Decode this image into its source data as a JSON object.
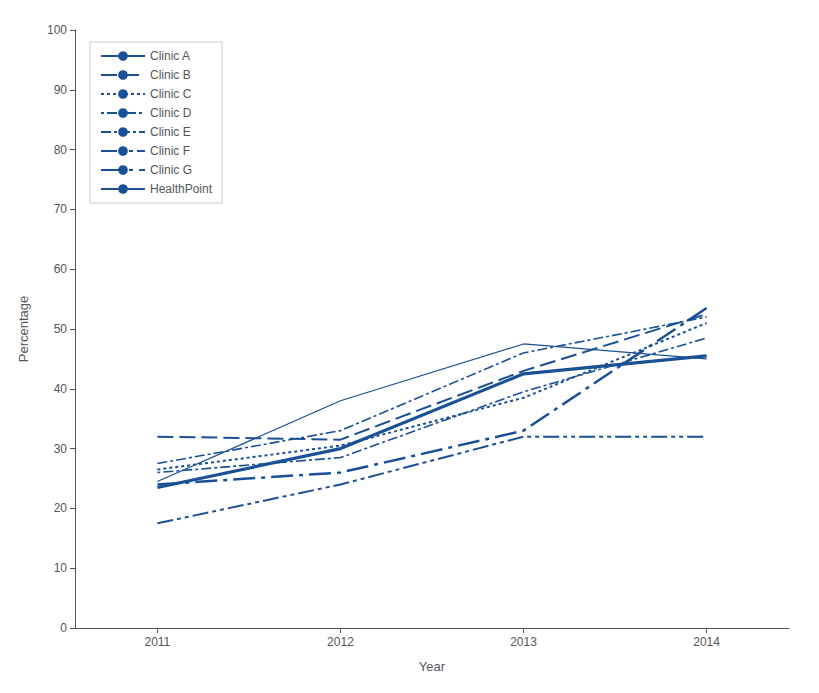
{
  "chart_data": {
    "type": "line",
    "x": [
      2011,
      2012,
      2013,
      2014
    ],
    "xlabel": "Year",
    "ylabel": "Percentage",
    "xlim": [
      2010.55,
      2014.45
    ],
    "xticks": [
      2011,
      2012,
      2013,
      2014
    ],
    "ylim": [
      0,
      100
    ],
    "yticks": [
      0,
      10,
      20,
      30,
      40,
      50,
      60,
      70,
      80,
      90,
      100
    ],
    "grid": false,
    "legend": "upper left",
    "color": "#1A5096",
    "series": [
      {
        "name": "Clinic A",
        "values": [
          24.5,
          38.0,
          47.5,
          45.0
        ],
        "line_style": "solid"
      },
      {
        "name": "Clinic B",
        "values": [
          32.0,
          31.5,
          43.0,
          52.5
        ],
        "line_style": "longdash"
      },
      {
        "name": "Clinic C",
        "values": [
          26.5,
          30.5,
          38.5,
          51.0
        ],
        "line_style": "dotted"
      },
      {
        "name": "Clinic D",
        "values": [
          26.0,
          28.5,
          39.5,
          48.5
        ],
        "line_style": "dotdash"
      },
      {
        "name": "Clinic E",
        "values": [
          27.5,
          33.0,
          46.0,
          52.0
        ],
        "line_style": "dashdot"
      },
      {
        "name": "Clinic F",
        "values": [
          17.5,
          24.0,
          32.0,
          32.0
        ],
        "line_style": "dashdotdot"
      },
      {
        "name": "Clinic G",
        "values": [
          24.0,
          26.0,
          33.0,
          53.5
        ],
        "line_style": "longdashdot"
      },
      {
        "name": "HealthPoint",
        "values": [
          23.5,
          30.0,
          42.5,
          45.5
        ],
        "line_style": "thick"
      }
    ]
  }
}
